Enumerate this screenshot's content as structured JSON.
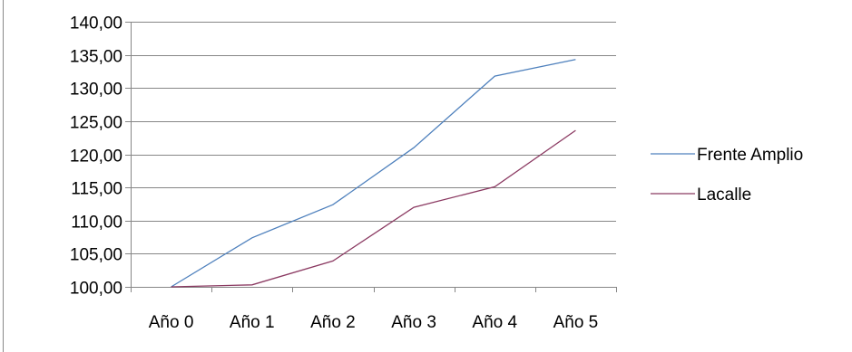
{
  "chart_data": {
    "type": "line",
    "title": "",
    "xlabel": "",
    "ylabel": "",
    "categories": [
      "Año 0",
      "Año 1",
      "Año 2",
      "Año 3",
      "Año 4",
      "Año 5"
    ],
    "series": [
      {
        "name": "Frente Amplio",
        "color": "#4f81bd",
        "values": [
          100.0,
          107.4,
          112.4,
          121.0,
          131.8,
          134.3
        ]
      },
      {
        "name": "Lacalle",
        "color": "#8b3a62",
        "values": [
          100.0,
          100.3,
          103.9,
          112.0,
          115.1,
          123.6
        ]
      }
    ],
    "ylim": [
      100,
      140
    ],
    "y_ticks": [
      100,
      105,
      110,
      115,
      120,
      125,
      130,
      135,
      140
    ],
    "y_tick_labels": [
      "100,00",
      "105,00",
      "110,00",
      "115,00",
      "120,00",
      "125,00",
      "130,00",
      "135,00",
      "140,00"
    ],
    "grid": true,
    "legend_position": "right"
  }
}
